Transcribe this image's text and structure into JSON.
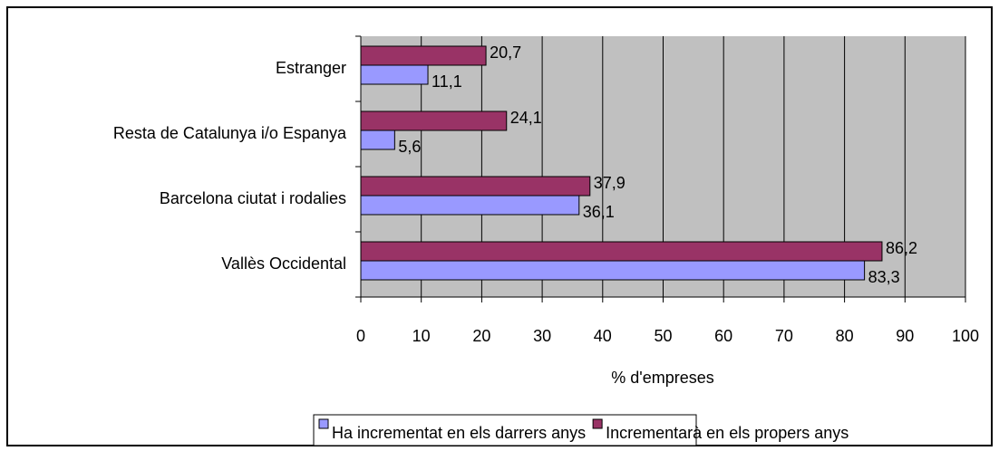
{
  "chart_data": {
    "type": "barh",
    "categories": [
      "Estranger",
      "Resta de Catalunya i/o Espanya",
      "Barcelona ciutat i rodalies",
      "Vallès Occidental"
    ],
    "series": [
      {
        "name": "Ha incrementat en els darrers anys",
        "color": "#9999ff",
        "values": [
          11.1,
          5.6,
          36.1,
          83.3
        ],
        "value_labels": [
          "11,1",
          "5,6",
          "36,1",
          "83,3"
        ]
      },
      {
        "name": "Incrementarà en els propers anys",
        "color": "#993366",
        "values": [
          20.7,
          24.1,
          37.9,
          86.2
        ],
        "value_labels": [
          "20,7",
          "24,1",
          "37,9",
          "86,2"
        ]
      }
    ],
    "xlabel": "% d'empreses",
    "xlim": [
      0,
      100
    ],
    "xticks": [
      0,
      10,
      20,
      30,
      40,
      50,
      60,
      70,
      80,
      90,
      100
    ],
    "grid": true,
    "background": "#c0c0c0",
    "legend": "bottom"
  }
}
